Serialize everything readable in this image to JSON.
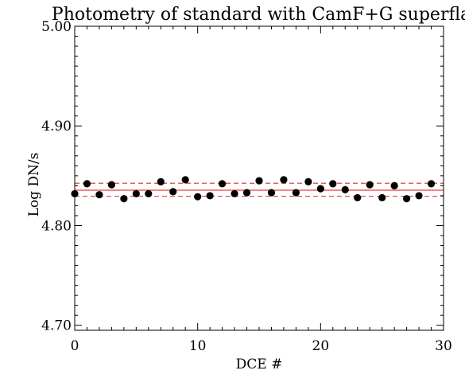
{
  "chart_data": {
    "type": "scatter",
    "title": "Photometry of standard with CamF+G superflat",
    "xlabel": "DCE #",
    "ylabel": "Log DN/s",
    "xlim": [
      0,
      30
    ],
    "ylim": [
      4.695,
      5.0
    ],
    "x_ticks": [
      0,
      10,
      20,
      30
    ],
    "x_tick_labels": [
      "0",
      "10",
      "20",
      "30"
    ],
    "y_ticks": [
      4.7,
      4.8,
      4.9,
      5.0
    ],
    "y_tick_labels": [
      "4.70",
      "4.80",
      "4.90",
      "5.00"
    ],
    "x_minor_step": 1,
    "y_minor_step": 0.01,
    "grid": false,
    "series": [
      {
        "x": [
          0,
          1,
          2,
          3,
          4,
          5,
          6,
          7,
          8,
          9,
          10,
          11,
          12,
          13,
          14,
          15,
          16,
          17,
          18,
          19,
          20,
          21,
          22,
          23,
          24,
          25,
          26,
          27,
          28,
          29
        ],
        "y": [
          4.832,
          4.842,
          4.831,
          4.841,
          4.827,
          4.832,
          4.832,
          4.844,
          4.834,
          4.846,
          4.829,
          4.83,
          4.842,
          4.832,
          4.833,
          4.845,
          4.833,
          4.846,
          4.833,
          4.844,
          4.837,
          4.842,
          4.836,
          4.828,
          4.841,
          4.828,
          4.84,
          4.827,
          4.83,
          4.842
        ],
        "color": "#000000"
      }
    ],
    "reference_lines": [
      {
        "y": 4.8355,
        "style": "solid",
        "color": "#e8413a"
      },
      {
        "y": 4.8425,
        "style": "dashed",
        "color": "#e8413a"
      },
      {
        "y": 4.8295,
        "style": "dashed",
        "color": "#e8413a"
      }
    ]
  }
}
